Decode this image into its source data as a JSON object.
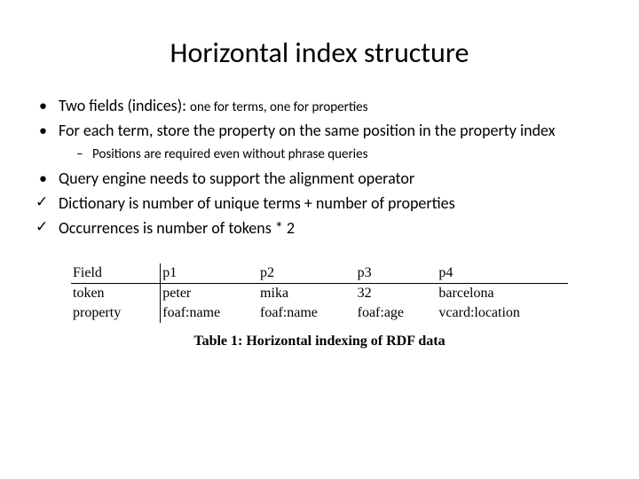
{
  "title": "Horizontal index structure",
  "bullets": {
    "b1_main": "Two fields (indices): ",
    "b1_sub": "one for terms, one for properties",
    "b2": "For each term, store the property on the same position in the property index",
    "b2_sub": "Positions are required even without phrase queries",
    "b3": "Query engine needs to support the alignment operator",
    "b4": " Dictionary is number of unique terms + number of properties",
    "b5": "Occurrences is number of tokens * 2"
  },
  "table": {
    "header": [
      "Field",
      "p1",
      "p2",
      "p3",
      "p4"
    ],
    "rows": [
      [
        "token",
        "peter",
        "mika",
        "32",
        "barcelona"
      ],
      [
        "property",
        "foaf:name",
        "foaf:name",
        "foaf:age",
        "vcard:location"
      ]
    ],
    "caption_label": "Table 1: Horizontal indexing of RDF data"
  },
  "colors": {
    "text": "#000000",
    "background": "#ffffff",
    "border": "#000000"
  },
  "fonts": {
    "title_size": 32,
    "body_size": 18,
    "sub_size": 15,
    "table_size": 16,
    "table_family": "serif"
  }
}
